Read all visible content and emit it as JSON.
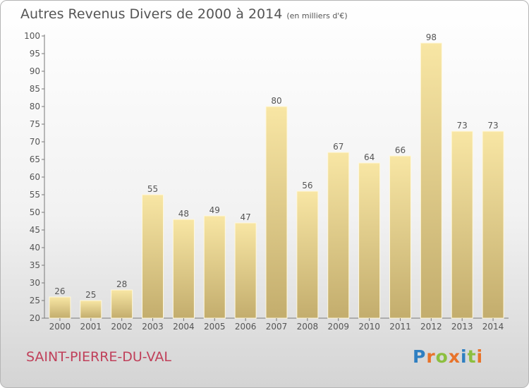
{
  "title": "Autres Revenus Divers de 2000 à 2014",
  "subtitle": "(en milliers d'€)",
  "town": "SAINT-PIERRE-DU-VAL",
  "logo": "Proxiti",
  "colors": {
    "bar_light": "#f8e6a4",
    "bar_dark": "#c3ad6d",
    "text": "#555555",
    "town": "#c0405a"
  },
  "chart_data": {
    "type": "bar",
    "title": "Autres Revenus Divers de 2000 à 2014",
    "subtitle": "(en milliers d'€)",
    "categories": [
      "2000",
      "2001",
      "2002",
      "2003",
      "2004",
      "2005",
      "2006",
      "2007",
      "2008",
      "2009",
      "2010",
      "2011",
      "2012",
      "2013",
      "2014"
    ],
    "values": [
      26,
      25,
      28,
      55,
      48,
      49,
      47,
      80,
      56,
      67,
      64,
      66,
      98,
      73,
      73
    ],
    "ylim": [
      20,
      100
    ],
    "yticks": [
      20,
      25,
      30,
      35,
      40,
      45,
      50,
      55,
      60,
      65,
      70,
      75,
      80,
      85,
      90,
      95,
      100
    ],
    "grid": false,
    "data_labels": true
  }
}
